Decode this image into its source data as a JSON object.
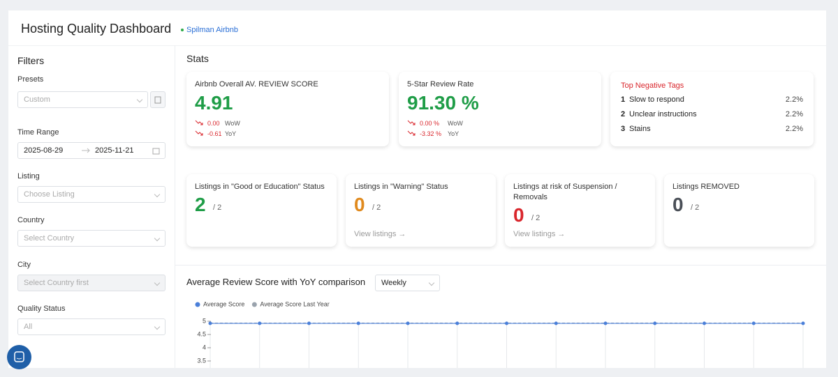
{
  "header": {
    "title": "Hosting Quality Dashboard",
    "account": "Spilman Airbnb"
  },
  "filters": {
    "title": "Filters",
    "presets": {
      "label": "Presets",
      "value": "Custom"
    },
    "time_range": {
      "label": "Time Range",
      "start": "2025-08-29",
      "end": "2025-11-21"
    },
    "listing": {
      "label": "Listing",
      "placeholder": "Choose Listing"
    },
    "country": {
      "label": "Country",
      "placeholder": "Select Country"
    },
    "city": {
      "label": "City",
      "placeholder": "Select Country first"
    },
    "quality_status": {
      "label": "Quality Status",
      "value": "All"
    }
  },
  "stats": {
    "title": "Stats",
    "cards": [
      {
        "title": "Airbnb Overall AV. REVIEW SCORE",
        "value": "4.91",
        "changes": [
          {
            "value": "0.00",
            "period": "WoW"
          },
          {
            "value": "-0.61",
            "period": "YoY"
          }
        ]
      },
      {
        "title": "5-Star Review Rate",
        "value": "91.30 %",
        "changes": [
          {
            "value": "0.00 %",
            "period": "WoW"
          },
          {
            "value": "-3.32 %",
            "period": "YoY"
          }
        ]
      }
    ],
    "negative_tags": {
      "title": "Top Negative Tags",
      "items": [
        {
          "rank": "1",
          "name": "Slow to respond",
          "share": "2.2%"
        },
        {
          "rank": "2",
          "name": "Unclear instructions",
          "share": "2.2%"
        },
        {
          "rank": "3",
          "name": "Stains",
          "share": "2.2%"
        }
      ]
    },
    "status_cards": [
      {
        "title": "Listings in \"Good or Education\" Status",
        "count": "2",
        "total": "/ 2"
      },
      {
        "title": "Listings in \"Warning\" Status",
        "count": "0",
        "total": "/ 2",
        "link": "View listings →"
      },
      {
        "title": "Listings at risk of Suspension / Removals",
        "count": "0",
        "total": "/ 2",
        "link": "View listings →"
      },
      {
        "title": "Listings REMOVED",
        "count": "0",
        "total": "/ 2"
      }
    ]
  },
  "period_selector": "Weekly",
  "chart_data": {
    "type": "line",
    "title": "Average Review Score with YoY comparison",
    "categories": [
      null,
      null,
      null,
      null,
      null,
      null,
      null,
      null,
      null,
      null,
      null,
      null,
      null
    ],
    "series": [
      {
        "name": "Average Score",
        "color": "#4a7fd9",
        "values": [
          4.92,
          4.92,
          4.92,
          4.92,
          4.92,
          4.92,
          4.92,
          4.92,
          4.92,
          4.92,
          4.92,
          4.92,
          4.92
        ]
      },
      {
        "name": "Average Score Last Year",
        "color": "#9aa3ad",
        "values": [
          4.93,
          4.93,
          4.93,
          4.93,
          4.93,
          4.93,
          4.93,
          4.93,
          4.93,
          4.93,
          4.93,
          4.93,
          4.93
        ]
      }
    ],
    "ylim": [
      3.5,
      5
    ],
    "yticks": [
      3.5,
      4,
      4.5,
      5
    ]
  }
}
